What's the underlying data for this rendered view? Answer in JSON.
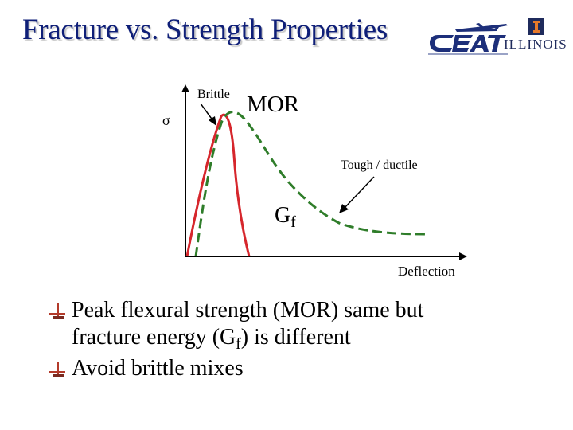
{
  "slide": {
    "title": "Fracture vs. Strength Properties",
    "logo": {
      "lettering": "CEAT",
      "illinois_text": "ILLINOIS",
      "illinois_block_letter": "I"
    },
    "colors": {
      "title": "#0f1f78",
      "brittle_curve": "#d6262c",
      "ductile_curve": "#2f7d2a",
      "bullet_icon": "#b33a2a"
    }
  },
  "diagram": {
    "y_label": "σ",
    "brittle_label": "Brittle",
    "mor_label": "MOR",
    "tough_label": "Tough / ductile",
    "gf_label": "G",
    "gf_subscript": "f",
    "x_label": "Deflection",
    "curves": [
      {
        "name": "brittle",
        "style": "solid",
        "icon": "red-solid-curve"
      },
      {
        "name": "tough / ductile",
        "style": "dashed",
        "icon": "green-dashed-curve"
      }
    ]
  },
  "bullets": [
    {
      "line1": "Peak flexural strength (MOR) same but",
      "line2_a": "fracture energy (G",
      "line2_sub": "f",
      "line2_b": ") is different"
    },
    {
      "line1": "Avoid brittle mixes"
    }
  ]
}
